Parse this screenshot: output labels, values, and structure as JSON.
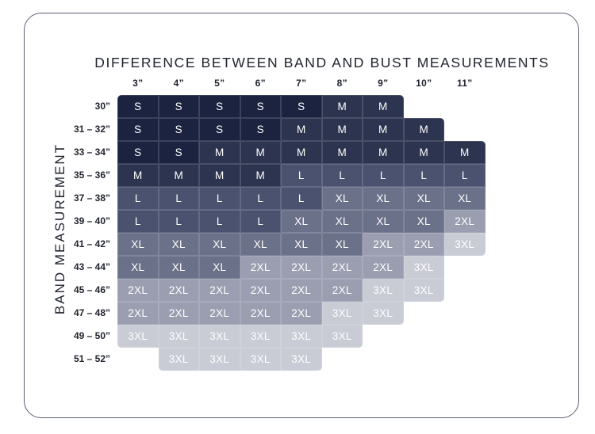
{
  "chart_data": {
    "type": "heatmap",
    "title": "DIFFERENCE BETWEEN BAND AND BUST MEASUREMENTS",
    "ylabel": "BAND MEASUREMENT",
    "x_categories": [
      "3”",
      "4”",
      "5”",
      "6”",
      "7”",
      "8”",
      "9”",
      "10”",
      "11”"
    ],
    "y_categories": [
      "30”",
      "31 – 32”",
      "33 – 34”",
      "35 – 36”",
      "37 – 38”",
      "39 – 40”",
      "41 – 42”",
      "43 – 44”",
      "45 – 46”",
      "47 – 48”",
      "49 – 50”",
      "51 – 52”"
    ],
    "matrix": [
      [
        "S",
        "S",
        "S",
        "S",
        "S",
        "M",
        "M",
        null,
        null
      ],
      [
        "S",
        "S",
        "S",
        "S",
        "M",
        "M",
        "M",
        "M",
        null
      ],
      [
        "S",
        "S",
        "M",
        "M",
        "M",
        "M",
        "M",
        "M",
        "M"
      ],
      [
        "M",
        "M",
        "M",
        "M",
        "L",
        "L",
        "L",
        "L",
        "L"
      ],
      [
        "L",
        "L",
        "L",
        "L",
        "L",
        "XL",
        "XL",
        "XL",
        "XL"
      ],
      [
        "L",
        "L",
        "L",
        "L",
        "XL",
        "XL",
        "XL",
        "XL",
        "2XL"
      ],
      [
        "XL",
        "XL",
        "XL",
        "XL",
        "XL",
        "XL",
        "2XL",
        "2XL",
        "3XL"
      ],
      [
        "XL",
        "XL",
        "XL",
        "2XL",
        "2XL",
        "2XL",
        "2XL",
        "3XL",
        null
      ],
      [
        "2XL",
        "2XL",
        "2XL",
        "2XL",
        "2XL",
        "2XL",
        "3XL",
        "3XL",
        null
      ],
      [
        "2XL",
        "2XL",
        "2XL",
        "2XL",
        "2XL",
        "3XL",
        "3XL",
        null,
        null
      ],
      [
        "3XL",
        "3XL",
        "3XL",
        "3XL",
        "3XL",
        "3XL",
        null,
        null,
        null
      ],
      [
        null,
        "3XL",
        "3XL",
        "3XL",
        "3XL",
        null,
        null,
        null,
        null
      ]
    ],
    "size_colors": {
      "S": "#1b2340",
      "M": "#2d344f",
      "L": "#4a526f",
      "XL": "#6b7189",
      "2XL": "#9a9eb0",
      "3XL": "#c9cbd5"
    },
    "cell_text_color": "#ffffff",
    "label_color": "#20242e",
    "card_border_color": "#5a6072",
    "legend_position": "none",
    "grid": "off"
  }
}
